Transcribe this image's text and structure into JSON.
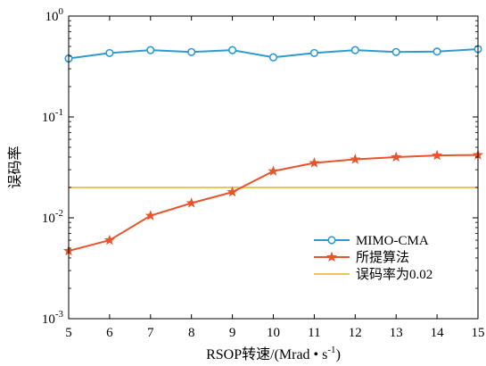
{
  "chart_data": {
    "type": "line",
    "xlabel": "RSOP转速/(Mrad • s⁻¹)",
    "xlabel_parts": {
      "main": "RSOP转速/(Mrad • s",
      "sup": "-1",
      "close": ")"
    },
    "ylabel": "误码率",
    "x": [
      5,
      6,
      7,
      8,
      9,
      10,
      11,
      12,
      13,
      14,
      15
    ],
    "xlim": [
      5,
      15
    ],
    "ylim": [
      0.001,
      1
    ],
    "yscale": "log",
    "x_ticks": [
      "5",
      "6",
      "7",
      "8",
      "9",
      "10",
      "11",
      "12",
      "13",
      "14",
      "15"
    ],
    "y_ticks": [
      {
        "value": 1,
        "base": "10",
        "exp": "0"
      },
      {
        "value": 0.1,
        "base": "10",
        "exp": "-1"
      },
      {
        "value": 0.01,
        "base": "10",
        "exp": "-2"
      },
      {
        "value": 0.001,
        "base": "10",
        "exp": "-3"
      }
    ],
    "grid": false,
    "legend_position": "lower-right",
    "series": [
      {
        "name": "MIMO-CMA",
        "color": "#2e9ad0",
        "marker": "circle",
        "values": [
          0.38,
          0.43,
          0.46,
          0.44,
          0.46,
          0.39,
          0.43,
          0.46,
          0.44,
          0.445,
          0.47
        ]
      },
      {
        "name": "所提算法",
        "color": "#e8542b",
        "marker": "star",
        "values": [
          0.0047,
          0.006,
          0.0105,
          0.014,
          0.018,
          0.029,
          0.035,
          0.038,
          0.04,
          0.0415,
          0.042
        ]
      },
      {
        "name": "误码率为0.02",
        "color": "#f0c25a",
        "marker": "none",
        "values": [
          0.02,
          0.02,
          0.02,
          0.02,
          0.02,
          0.02,
          0.02,
          0.02,
          0.02,
          0.02,
          0.02
        ]
      }
    ]
  }
}
